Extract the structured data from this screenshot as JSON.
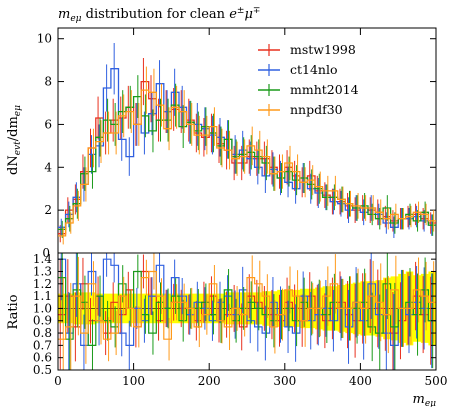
{
  "chart_data": {
    "type": "line",
    "title_main": "m",
    "title_sub": "eμ",
    "title_rest": " distribution for clean ",
    "title_lepton": "e",
    "title_lepton_sup1": "±",
    "title_mu": "μ",
    "title_lepton_sup2": "∓",
    "ylabel_main": "dN",
    "ylabel_sub1": "evt",
    "ylabel_slash": "/dm",
    "ylabel_sub2": "eμ",
    "xlabel_main": "m",
    "xlabel_sub": "eμ",
    "ratio_ylabel": "Ratio",
    "xlim": [
      0,
      500
    ],
    "ylim_main": [
      0,
      10.5
    ],
    "ylim_ratio": [
      0.5,
      1.45
    ],
    "x_ticks": [
      "0",
      "100",
      "200",
      "300",
      "400",
      "500"
    ],
    "y_ticks_main": [
      "2",
      "4",
      "6",
      "8",
      "10"
    ],
    "y_ticks_ratio": [
      "0.5",
      "0.6",
      "0.7",
      "0.8",
      "0.9",
      "1.0",
      "1.1",
      "1.2",
      "1.3",
      "1.4"
    ],
    "ratio_top_tick": "0",
    "legend_position": "top-right",
    "bin_width": 10,
    "band_color": "#ffff00",
    "series": [
      {
        "name": "mstw1998",
        "color": "#e8301e",
        "values": [
          0.9,
          2.0,
          2.5,
          3.8,
          4.9,
          6.3,
          5.6,
          6.2,
          6.3,
          6.8,
          6.0,
          8.0,
          7.2,
          6.2,
          6.6,
          6.7,
          6.6,
          6.2,
          5.6,
          5.4,
          5.6,
          5.1,
          4.8,
          4.2,
          4.2,
          4.5,
          4.4,
          4.4,
          4.0,
          3.8,
          4.0,
          3.6,
          3.3,
          3.6,
          2.9,
          2.7,
          2.4,
          2.4,
          2.2,
          2.0,
          2.1,
          2.0,
          1.9,
          1.7,
          1.5,
          1.6,
          1.7,
          1.8,
          1.6,
          1.4
        ],
        "errors": [
          0.4,
          0.6,
          0.7,
          0.8,
          0.9,
          1.0,
          1.0,
          1.0,
          1.0,
          1.0,
          1.0,
          1.1,
          1.1,
          1.0,
          1.0,
          1.0,
          1.0,
          1.0,
          0.9,
          0.9,
          0.9,
          0.9,
          0.9,
          0.8,
          0.8,
          0.8,
          0.8,
          0.8,
          0.8,
          0.8,
          0.8,
          0.7,
          0.7,
          0.7,
          0.7,
          0.6,
          0.6,
          0.6,
          0.6,
          0.6,
          0.6,
          0.6,
          0.6,
          0.5,
          0.5,
          0.5,
          0.5,
          0.5,
          0.5,
          0.5
        ],
        "ratio": [
          0.95,
          1.1,
          0.85,
          1.2,
          0.9,
          1.1,
          0.8,
          1.05,
          0.95,
          1.15,
          0.85,
          1.3,
          1.1,
          0.9,
          1.0,
          1.05,
          1.0,
          0.95,
          0.9,
          1.05,
          1.1,
          0.9,
          0.95,
          1.0,
          0.85,
          1.1,
          1.05,
          1.0,
          0.95,
          0.9,
          1.05,
          1.0,
          0.9,
          1.1,
          0.95,
          0.9,
          1.0,
          1.05,
          0.95,
          0.9,
          1.0,
          1.1,
          1.0,
          0.95,
          0.8,
          0.9,
          1.0,
          1.1,
          0.95,
          0.9
        ]
      },
      {
        "name": "ct14nlo",
        "color": "#3060e0",
        "values": [
          1.2,
          1.8,
          2.6,
          3.2,
          4.6,
          5.0,
          7.7,
          8.6,
          5.3,
          4.5,
          6.0,
          5.6,
          6.5,
          7.9,
          6.6,
          7.5,
          6.8,
          6.1,
          6.0,
          5.8,
          5.5,
          5.4,
          5.3,
          4.6,
          4.8,
          4.4,
          4.0,
          3.6,
          3.9,
          3.5,
          3.3,
          3.0,
          3.5,
          3.0,
          2.8,
          2.6,
          2.4,
          2.3,
          2.0,
          2.1,
          1.9,
          2.1,
          1.8,
          1.4,
          1.2,
          1.6,
          1.6,
          1.7,
          1.5,
          1.3
        ],
        "errors": [
          0.4,
          0.6,
          0.7,
          0.8,
          0.9,
          1.0,
          1.1,
          1.2,
          1.0,
          0.9,
          1.0,
          1.0,
          1.0,
          1.1,
          1.0,
          1.1,
          1.0,
          1.0,
          1.0,
          1.0,
          0.9,
          0.9,
          0.9,
          0.9,
          0.9,
          0.8,
          0.8,
          0.8,
          0.8,
          0.8,
          0.7,
          0.7,
          0.7,
          0.7,
          0.7,
          0.6,
          0.6,
          0.6,
          0.6,
          0.6,
          0.6,
          0.6,
          0.5,
          0.5,
          0.5,
          0.5,
          0.5,
          0.5,
          0.5,
          0.5
        ],
        "ratio": [
          1.4,
          0.8,
          1.2,
          0.7,
          1.3,
          0.9,
          1.4,
          1.35,
          0.8,
          0.7,
          1.0,
          0.9,
          1.1,
          1.35,
          1.0,
          1.25,
          1.1,
          0.95,
          1.05,
          1.0,
          0.9,
          1.05,
          1.1,
          0.95,
          1.15,
          0.9,
          0.85,
          0.8,
          1.05,
          0.95,
          0.85,
          0.8,
          1.1,
          0.9,
          0.95,
          1.0,
          0.9,
          1.0,
          0.85,
          1.05,
          0.9,
          1.2,
          0.95,
          0.8,
          0.7,
          1.0,
          0.95,
          1.05,
          1.0,
          0.9
        ]
      },
      {
        "name": "mmht2014",
        "color": "#1a9a1a",
        "values": [
          1.1,
          1.6,
          2.3,
          3.7,
          3.8,
          5.4,
          6.2,
          6.0,
          6.6,
          6.8,
          7.3,
          6.4,
          5.7,
          6.2,
          6.2,
          6.9,
          5.9,
          6.1,
          5.7,
          5.9,
          5.6,
          5.0,
          5.3,
          4.5,
          4.6,
          4.7,
          4.5,
          4.2,
          3.7,
          3.5,
          3.8,
          3.4,
          3.5,
          3.2,
          3.0,
          2.6,
          2.6,
          2.5,
          2.3,
          2.1,
          2.2,
          1.8,
          1.6,
          2.1,
          1.4,
          1.6,
          1.8,
          1.5,
          1.9,
          1.3
        ],
        "errors": [
          0.4,
          0.6,
          0.7,
          0.8,
          0.8,
          0.9,
          1.0,
          1.0,
          1.0,
          1.0,
          1.0,
          1.0,
          1.0,
          1.0,
          1.0,
          1.0,
          1.0,
          1.0,
          0.9,
          0.9,
          0.9,
          0.9,
          0.9,
          0.8,
          0.8,
          0.8,
          0.8,
          0.8,
          0.8,
          0.7,
          0.7,
          0.7,
          0.7,
          0.7,
          0.7,
          0.6,
          0.6,
          0.6,
          0.6,
          0.6,
          0.6,
          0.5,
          0.5,
          0.6,
          0.5,
          0.5,
          0.5,
          0.5,
          0.5,
          0.5
        ],
        "ratio": [
          1.25,
          0.75,
          1.15,
          1.05,
          0.7,
          1.1,
          0.9,
          0.85,
          1.2,
          1.0,
          1.3,
          0.95,
          0.8,
          1.05,
          1.0,
          1.1,
          0.9,
          1.0,
          1.0,
          1.05,
          0.95,
          0.9,
          1.15,
          0.9,
          1.0,
          1.05,
          1.0,
          0.95,
          0.9,
          0.95,
          1.0,
          0.9,
          1.05,
          1.0,
          1.0,
          0.95,
          1.05,
          1.0,
          1.0,
          1.0,
          1.05,
          0.85,
          0.8,
          1.2,
          0.85,
          1.0,
          1.05,
          0.95,
          1.15,
          0.9
        ]
      },
      {
        "name": "nnpdf30",
        "color": "#ff9a1a",
        "values": [
          0.8,
          1.4,
          2.2,
          3.2,
          4.9,
          5.2,
          5.6,
          5.6,
          6.4,
          6.6,
          6.0,
          7.6,
          7.5,
          6.9,
          5.8,
          6.8,
          6.6,
          6.0,
          5.5,
          5.5,
          5.9,
          4.9,
          4.8,
          4.4,
          4.5,
          5.0,
          4.8,
          4.5,
          3.7,
          3.8,
          4.2,
          3.8,
          3.3,
          3.4,
          3.1,
          2.9,
          2.9,
          2.5,
          2.3,
          2.2,
          2.1,
          2.1,
          1.9,
          1.6,
          1.8,
          1.6,
          1.7,
          1.9,
          1.8,
          1.5
        ],
        "errors": [
          0.4,
          0.5,
          0.7,
          0.8,
          0.9,
          1.0,
          1.0,
          1.0,
          1.0,
          1.0,
          1.0,
          1.1,
          1.1,
          1.0,
          1.0,
          1.0,
          1.0,
          1.0,
          0.9,
          0.9,
          0.9,
          0.9,
          0.9,
          0.8,
          0.8,
          0.9,
          0.9,
          0.8,
          0.8,
          0.8,
          0.8,
          0.8,
          0.7,
          0.7,
          0.7,
          0.7,
          0.7,
          0.6,
          0.6,
          0.6,
          0.6,
          0.6,
          0.6,
          0.5,
          0.5,
          0.5,
          0.5,
          0.5,
          0.5,
          0.5
        ],
        "ratio": [
          0.75,
          0.85,
          1.1,
          0.8,
          1.2,
          0.9,
          0.75,
          0.8,
          1.1,
          1.0,
          0.85,
          1.25,
          1.3,
          1.1,
          0.75,
          1.05,
          1.05,
          1.0,
          0.85,
          0.95,
          1.2,
          0.9,
          0.85,
          1.0,
          0.95,
          1.25,
          1.2,
          1.1,
          0.85,
          0.95,
          1.15,
          1.1,
          0.9,
          1.0,
          1.0,
          1.1,
          1.2,
          1.0,
          1.0,
          1.05,
          1.0,
          1.1,
          1.05,
          0.95,
          1.15,
          1.0,
          1.0,
          1.15,
          1.1,
          1.05
        ]
      }
    ],
    "band_halfwidth": [
      0.12,
      0.12,
      0.13,
      0.13,
      0.13,
      0.12,
      0.12,
      0.12,
      0.12,
      0.12,
      0.12,
      0.12,
      0.12,
      0.12,
      0.12,
      0.12,
      0.12,
      0.12,
      0.12,
      0.12,
      0.12,
      0.12,
      0.13,
      0.13,
      0.13,
      0.13,
      0.13,
      0.14,
      0.14,
      0.15,
      0.15,
      0.15,
      0.16,
      0.16,
      0.17,
      0.18,
      0.18,
      0.19,
      0.2,
      0.21,
      0.22,
      0.22,
      0.23,
      0.25,
      0.26,
      0.28,
      0.3,
      0.27,
      0.28,
      0.3
    ]
  }
}
